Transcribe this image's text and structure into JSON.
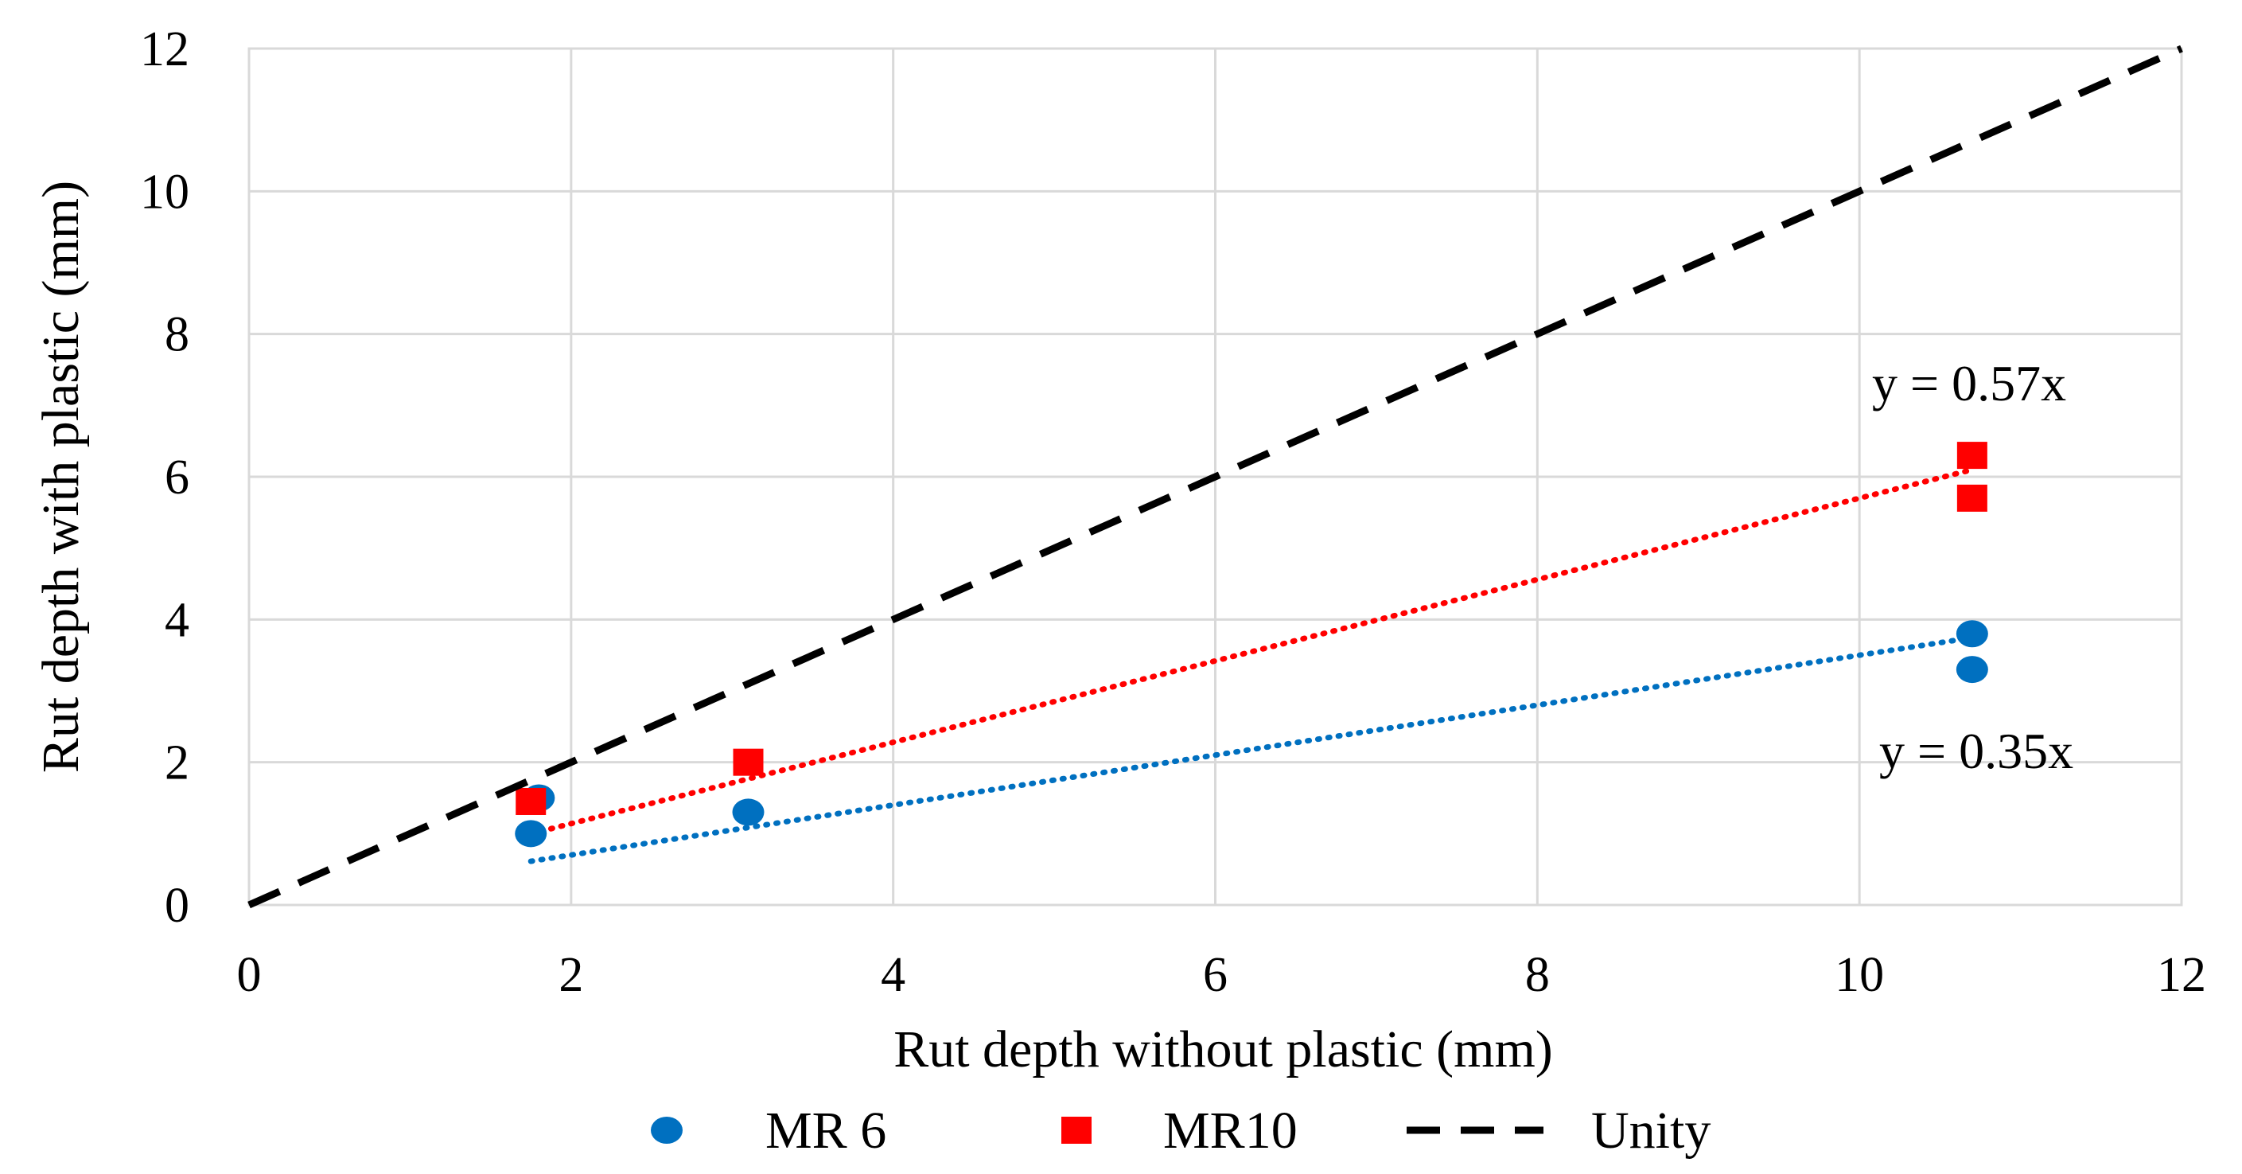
{
  "chart_data": {
    "type": "scatter",
    "title": "",
    "xlabel": "Rut depth without plastic (mm)",
    "ylabel": "Rut depth with plastic (mm)",
    "xlim": [
      0,
      12
    ],
    "ylim": [
      0,
      12
    ],
    "x_ticks": [
      0,
      2,
      4,
      6,
      8,
      10,
      12
    ],
    "y_ticks": [
      0,
      2,
      4,
      6,
      8,
      10,
      12
    ],
    "x_tick_labels": [
      "0",
      "2",
      "4",
      "6",
      "8",
      "10",
      "12"
    ],
    "y_tick_labels": [
      "0",
      "2",
      "4",
      "6",
      "8",
      "10",
      "12"
    ],
    "grid": true,
    "legend_position": "bottom",
    "series": [
      {
        "name": "MR 6",
        "marker": "circle",
        "color": "#0070C0",
        "points": [
          [
            1.75,
            1.0
          ],
          [
            1.8,
            1.5
          ],
          [
            3.1,
            1.3
          ],
          [
            10.7,
            3.8
          ],
          [
            10.7,
            3.3
          ]
        ],
        "trendline": {
          "slope": 0.35,
          "x_range": [
            1.75,
            10.7
          ],
          "style": "dotted",
          "label": "y = 0.35x"
        }
      },
      {
        "name": "MR10",
        "marker": "square",
        "color": "#FF0000",
        "points": [
          [
            1.75,
            1.45
          ],
          [
            3.1,
            2.0
          ],
          [
            10.7,
            6.3
          ],
          [
            10.7,
            5.7
          ]
        ],
        "trendline": {
          "slope": 0.57,
          "x_range": [
            1.75,
            10.7
          ],
          "style": "dotted",
          "label": "y = 0.57x"
        }
      },
      {
        "name": "Unity",
        "type": "line",
        "color": "#000000",
        "style": "dashed",
        "points": [
          [
            0,
            0
          ],
          [
            12,
            12
          ]
        ]
      }
    ]
  }
}
